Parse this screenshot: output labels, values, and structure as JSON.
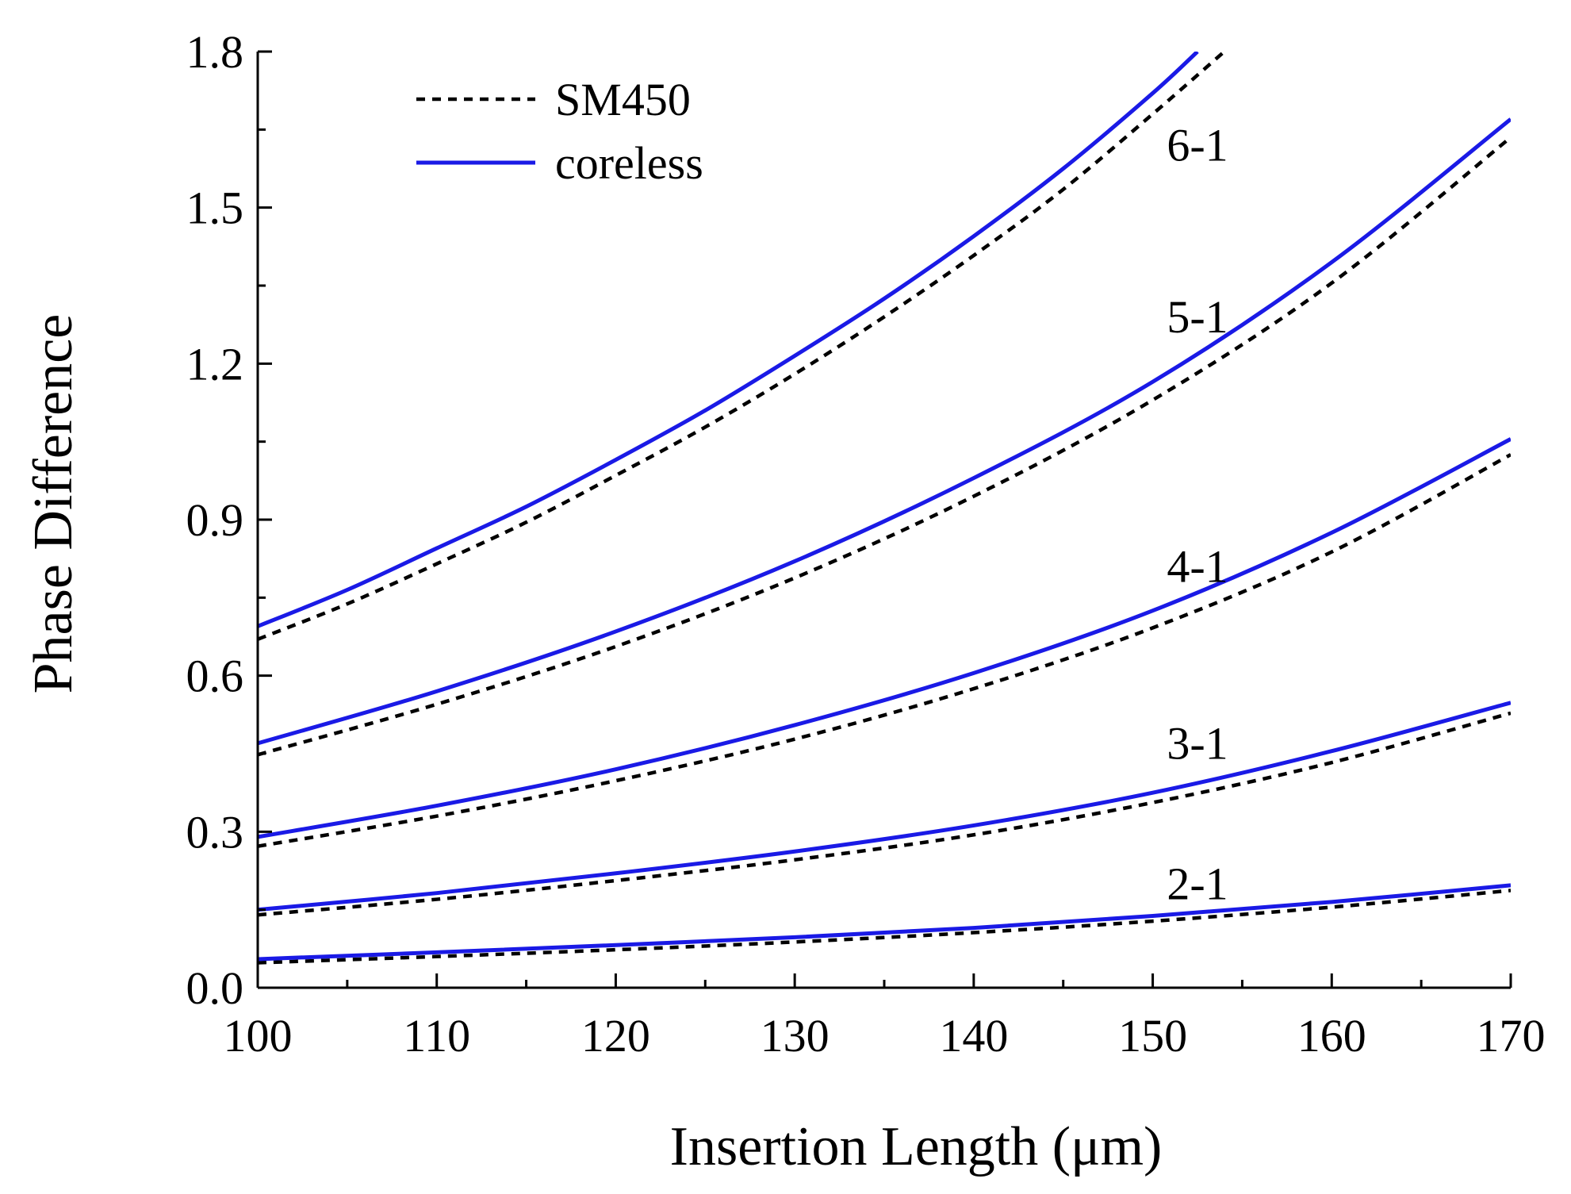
{
  "chart_data": {
    "type": "line",
    "title": "",
    "xlabel": "Insertion Length (μm)",
    "ylabel": "Phase Difference",
    "xlim": [
      100,
      170
    ],
    "ylim": [
      0.0,
      1.8
    ],
    "xticks": [
      100,
      110,
      120,
      130,
      140,
      150,
      160,
      170
    ],
    "xtick_labels": [
      "100",
      "110",
      "120",
      "130",
      "140",
      "150",
      "160",
      "170"
    ],
    "yticks": [
      0.0,
      0.3,
      0.6,
      0.9,
      1.2,
      1.5,
      1.8
    ],
    "ytick_labels": [
      "0.0",
      "0.3",
      "0.6",
      "0.9",
      "1.2",
      "1.5",
      "1.8"
    ],
    "grid": false,
    "legend": {
      "position": "top-left",
      "entries": [
        {
          "label": "SM450",
          "style": "dashed",
          "color": "#000000"
        },
        {
          "label": "coreless",
          "style": "solid",
          "color": "#1a1ae6"
        }
      ]
    },
    "series": [
      {
        "name": "coreless 2-1",
        "group": "coreless",
        "x": [
          100,
          110,
          120,
          130,
          140,
          150,
          160,
          170
        ],
        "y": [
          0.055,
          0.068,
          0.082,
          0.097,
          0.115,
          0.138,
          0.165,
          0.197
        ]
      },
      {
        "name": "SM450 2-1",
        "group": "SM450",
        "x": [
          100,
          110,
          120,
          130,
          140,
          150,
          160,
          170
        ],
        "y": [
          0.048,
          0.06,
          0.073,
          0.088,
          0.106,
          0.128,
          0.155,
          0.187
        ]
      },
      {
        "name": "coreless 3-1",
        "group": "coreless",
        "x": [
          100,
          110,
          120,
          130,
          140,
          150,
          160,
          170
        ],
        "y": [
          0.15,
          0.182,
          0.22,
          0.262,
          0.312,
          0.375,
          0.455,
          0.548
        ]
      },
      {
        "name": "SM450 3-1",
        "group": "SM450",
        "x": [
          100,
          110,
          120,
          130,
          140,
          150,
          160,
          170
        ],
        "y": [
          0.14,
          0.17,
          0.206,
          0.246,
          0.294,
          0.356,
          0.433,
          0.528
        ]
      },
      {
        "name": "coreless 4-1",
        "group": "coreless",
        "x": [
          100,
          110,
          120,
          130,
          140,
          150,
          160,
          170
        ],
        "y": [
          0.29,
          0.35,
          0.42,
          0.505,
          0.605,
          0.725,
          0.875,
          1.055
        ]
      },
      {
        "name": "SM450 4-1",
        "group": "SM450",
        "x": [
          100,
          110,
          120,
          130,
          140,
          150,
          160,
          170
        ],
        "y": [
          0.272,
          0.33,
          0.398,
          0.478,
          0.575,
          0.692,
          0.838,
          1.025
        ]
      },
      {
        "name": "coreless 5-1",
        "group": "coreless",
        "x": [
          100,
          110,
          120,
          130,
          140,
          150,
          160,
          170
        ],
        "y": [
          0.47,
          0.57,
          0.685,
          0.82,
          0.98,
          1.165,
          1.395,
          1.67
        ]
      },
      {
        "name": "SM450 5-1",
        "group": "SM450",
        "x": [
          100,
          110,
          120,
          130,
          140,
          150,
          160,
          170
        ],
        "y": [
          0.448,
          0.545,
          0.656,
          0.788,
          0.945,
          1.13,
          1.355,
          1.635
        ]
      },
      {
        "name": "coreless 6-1",
        "group": "coreless",
        "x": [
          100,
          105,
          110,
          115,
          120,
          125,
          130,
          135,
          140,
          145,
          150,
          152.5
        ],
        "y": [
          0.695,
          0.765,
          0.845,
          0.925,
          1.015,
          1.11,
          1.215,
          1.325,
          1.445,
          1.575,
          1.72,
          1.8
        ]
      },
      {
        "name": "SM450 6-1",
        "group": "SM450",
        "x": [
          100,
          105,
          110,
          115,
          120,
          125,
          130,
          135,
          140,
          145,
          150,
          154
        ],
        "y": [
          0.67,
          0.738,
          0.815,
          0.895,
          0.985,
          1.078,
          1.18,
          1.29,
          1.408,
          1.535,
          1.68,
          1.8
        ]
      }
    ],
    "annotations": [
      {
        "text": "6-1",
        "x": 152.5,
        "y": 1.59
      },
      {
        "text": "5-1",
        "x": 152.5,
        "y": 1.26
      },
      {
        "text": "4-1",
        "x": 152.5,
        "y": 0.78
      },
      {
        "text": "3-1",
        "x": 152.5,
        "y": 0.44
      },
      {
        "text": "2-1",
        "x": 152.5,
        "y": 0.17
      }
    ]
  }
}
